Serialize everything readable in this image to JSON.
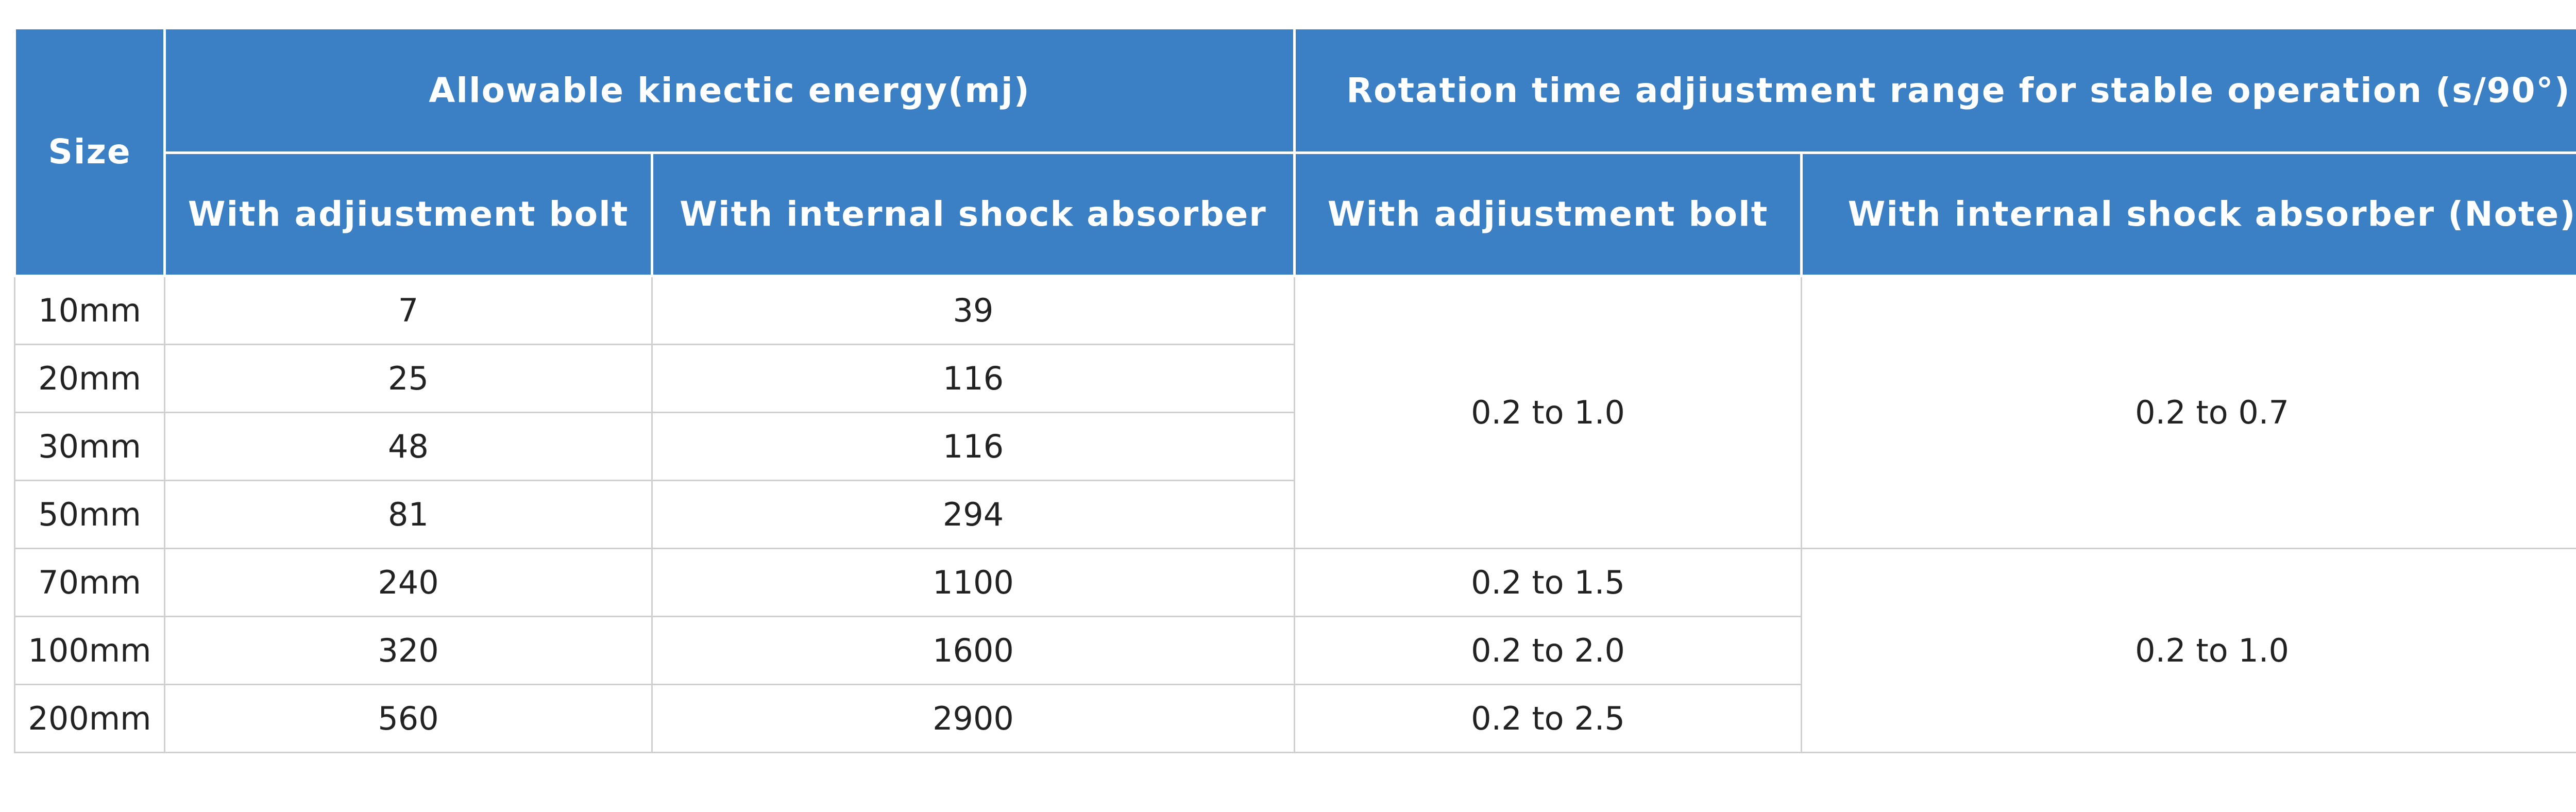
{
  "table": {
    "header": {
      "size": "Size",
      "energy": "Allowable kinectic energy(mj)",
      "rotation": "Rotation time adjiustment range for stable operation (s/90°)",
      "energy_bolt": "With adjiustment bolt",
      "energy_absorber": "With internal shock absorber",
      "rotation_bolt": "With adjiustment bolt",
      "rotation_absorber": "With internal shock absorber (Note)"
    },
    "rows": [
      [
        "10mm",
        7,
        39
      ],
      [
        "20mm",
        25,
        116
      ],
      [
        "30mm",
        48,
        116
      ],
      [
        "50mm",
        81,
        294
      ],
      [
        "70mm",
        240,
        1100
      ],
      [
        "100mm",
        320,
        1600
      ],
      [
        "200mm",
        560,
        2900
      ]
    ],
    "rotation_bolt": [
      "0.2 to 1.0",
      "0.2 to 1.5",
      "0.2 to 2.0",
      "0.2 to 2.5"
    ],
    "rotation_absorber": [
      "0.2 to 0.7",
      "0.2 to 1.0"
    ]
  }
}
